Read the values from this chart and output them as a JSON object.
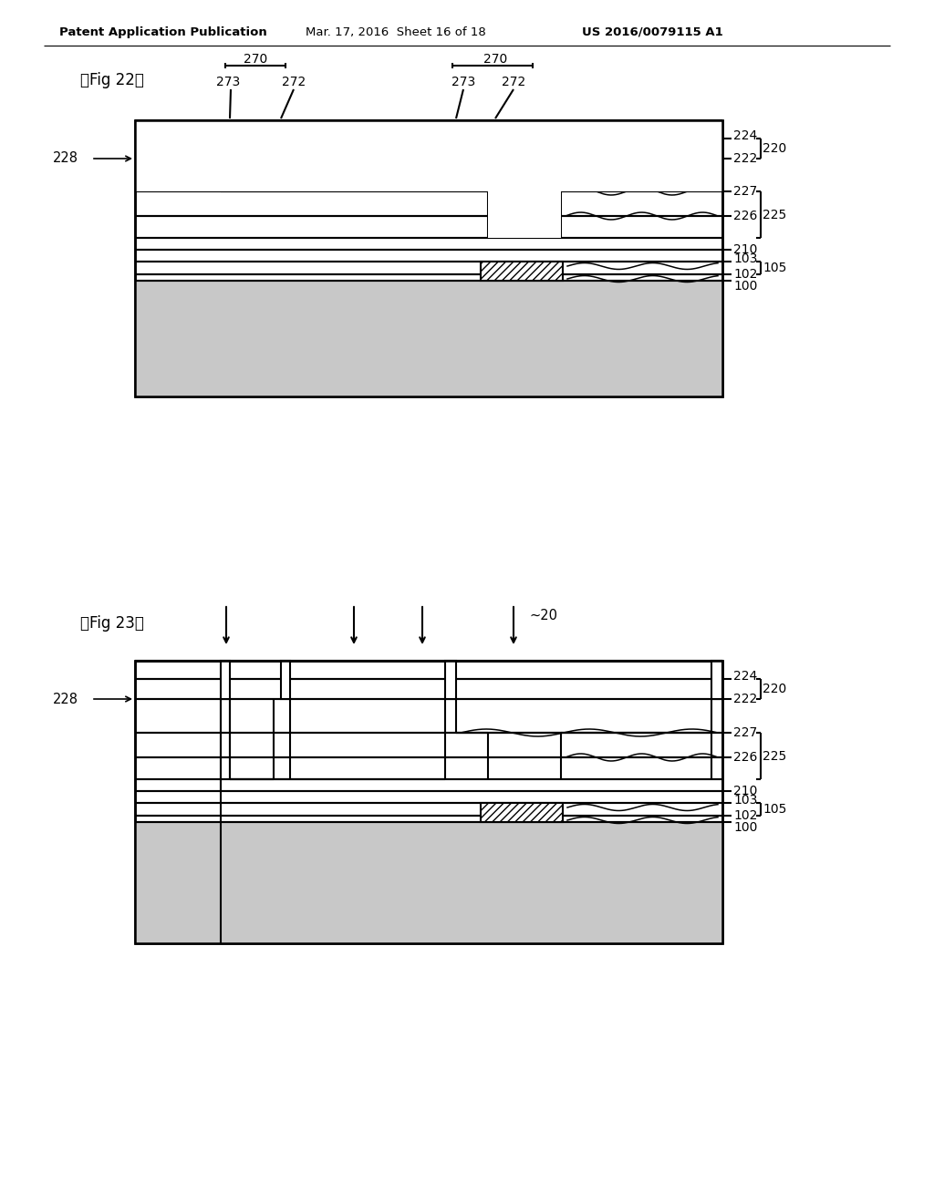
{
  "header_left": "Patent Application Publication",
  "header_mid": "Mar. 17, 2016  Sheet 16 of 18",
  "header_right": "US 2016/0079115 A1",
  "fig22_label": "【Fig 22】",
  "fig23_label": "【Fig 23】",
  "bg": "#ffffff"
}
